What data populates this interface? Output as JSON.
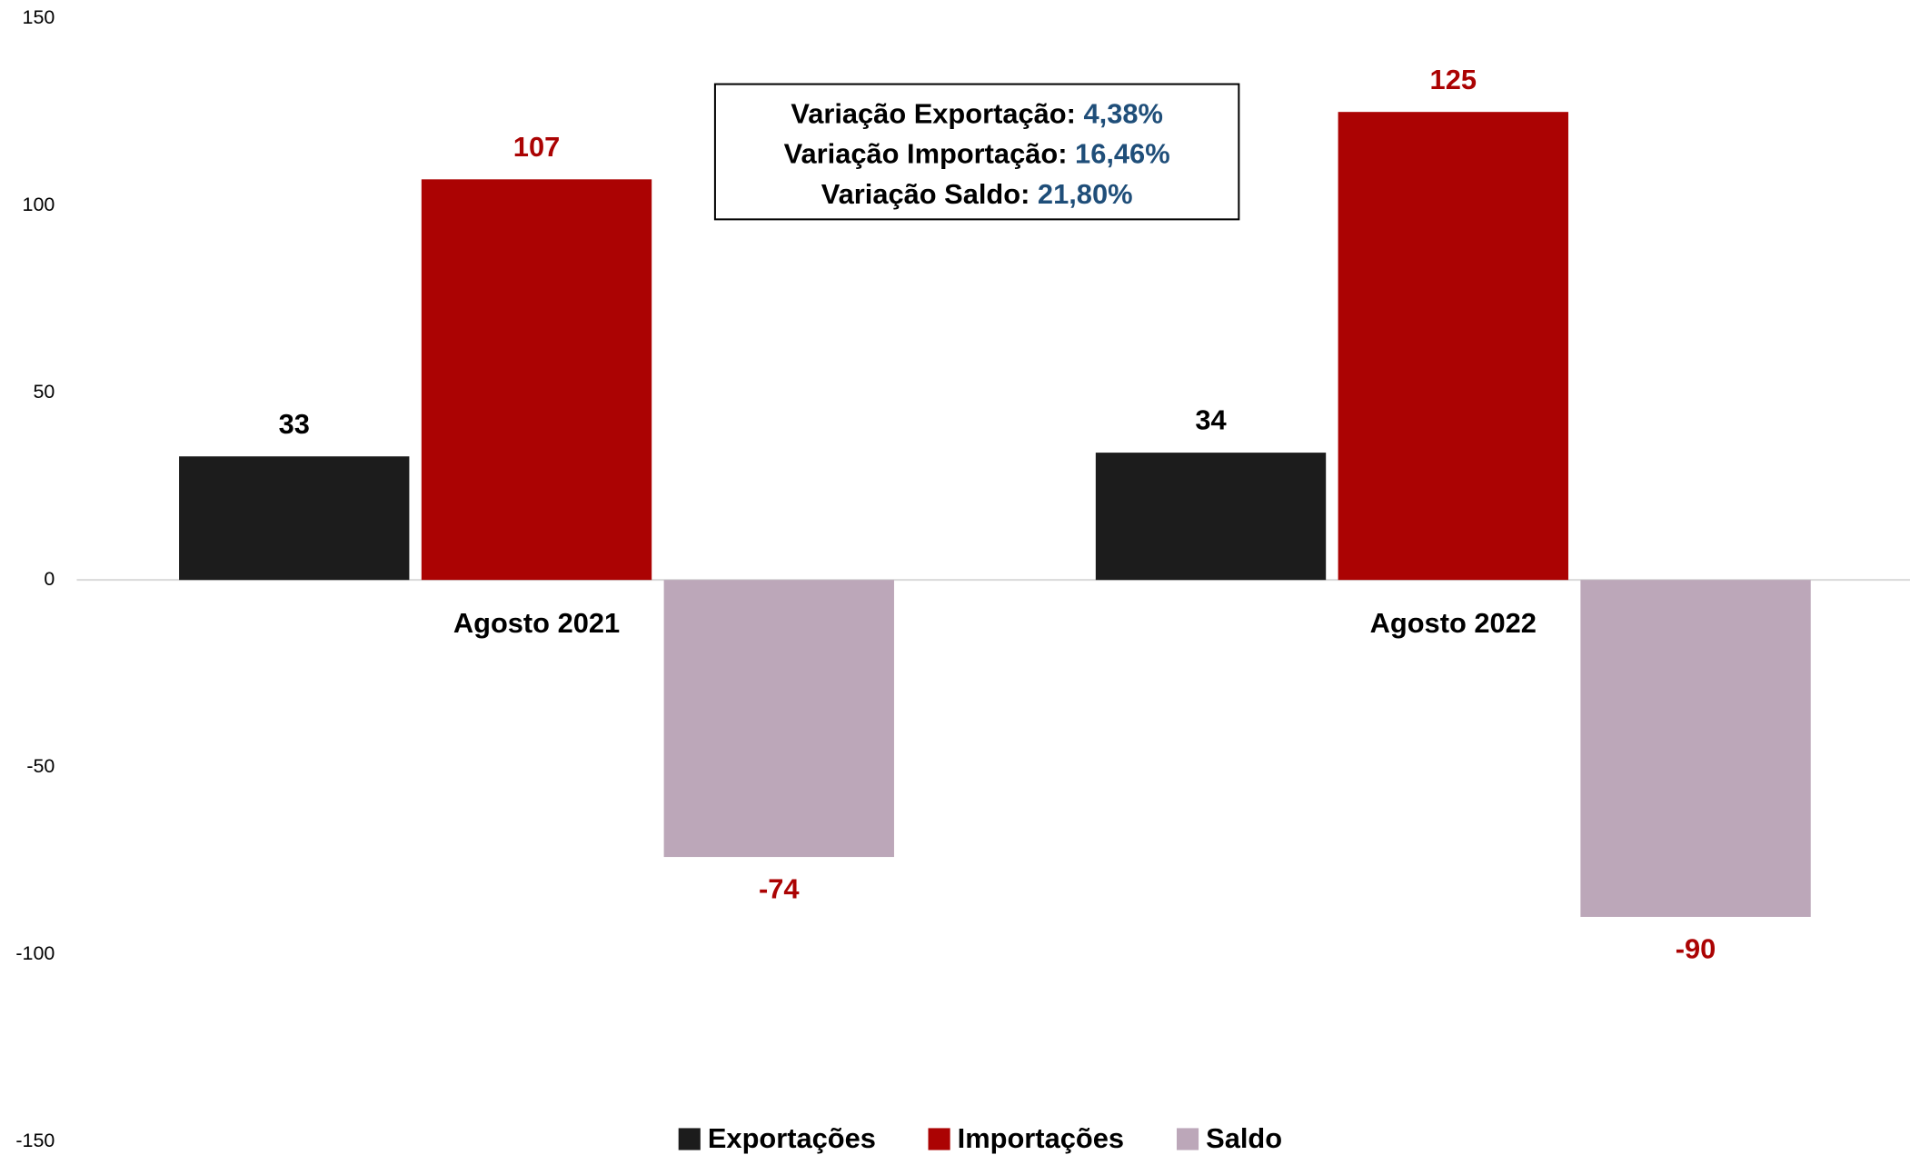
{
  "chart_data": {
    "type": "bar",
    "categories": [
      "Agosto 2021",
      "Agosto 2022"
    ],
    "series": [
      {
        "name": "Exportações",
        "color": "#1c1c1c",
        "label_color": "#000000",
        "values": [
          33,
          34
        ]
      },
      {
        "name": "Importações",
        "color": "#ab0303",
        "label_color": "#ab0303",
        "values": [
          107,
          125
        ]
      },
      {
        "name": "Saldo",
        "color": "#bca7b9",
        "label_color": "#ab0303",
        "values": [
          -74,
          -90
        ]
      }
    ],
    "ylim": [
      -150,
      150
    ],
    "yticks": [
      -150,
      -100,
      -50,
      0,
      50,
      100,
      150
    ],
    "grid": false,
    "legend": "bottom",
    "annotations": [
      {
        "label": "Variação Exportação:",
        "value": "4,38%"
      },
      {
        "label": "Variação Importação:",
        "value": "16,46%"
      },
      {
        "label": "Variação Saldo:",
        "value": "21,80%"
      }
    ],
    "annotation_value_color": "#1f4e79"
  }
}
